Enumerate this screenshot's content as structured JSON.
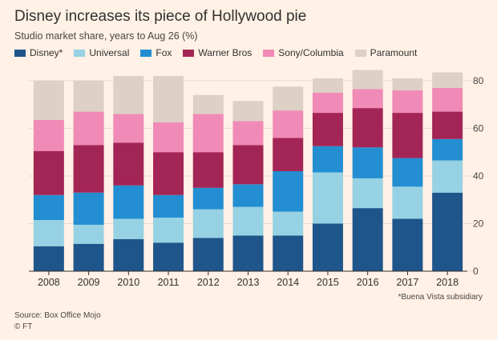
{
  "title": "Disney increases its piece of Hollywood pie",
  "subtitle": "Studio market share, years to Aug 26 (%)",
  "footnote": "*Buena Vista subsidiary",
  "source": "Source: Box Office Mojo",
  "credit": "© FT",
  "colors": {
    "Disney*": "#1e558b",
    "Universal": "#96d2e3",
    "Fox": "#238ed2",
    "Warner Bros": "#a32555",
    "Sony/Columbia": "#f08ab6",
    "Paramount": "#ddd0c6"
  },
  "chart_data": {
    "type": "bar",
    "stacked": true,
    "categories": [
      "2008",
      "2009",
      "2010",
      "2011",
      "2012",
      "2013",
      "2014",
      "2015",
      "2016",
      "2017",
      "2018"
    ],
    "series": [
      {
        "name": "Disney*",
        "values": [
          10.5,
          11.5,
          13.5,
          12.0,
          14.0,
          15.0,
          15.0,
          20.0,
          26.5,
          22.0,
          33.0
        ]
      },
      {
        "name": "Universal",
        "values": [
          11.0,
          8.0,
          8.5,
          10.5,
          12.0,
          12.0,
          10.0,
          21.5,
          12.5,
          13.5,
          13.5
        ]
      },
      {
        "name": "Fox",
        "values": [
          10.5,
          13.5,
          14.0,
          9.5,
          9.0,
          9.5,
          17.0,
          11.0,
          13.0,
          12.0,
          9.0
        ]
      },
      {
        "name": "Warner Bros",
        "values": [
          18.5,
          20.0,
          18.0,
          18.0,
          15.0,
          16.5,
          14.0,
          14.0,
          16.5,
          19.0,
          11.5
        ]
      },
      {
        "name": "Sony/Columbia",
        "values": [
          13.0,
          14.0,
          12.0,
          12.5,
          16.0,
          10.0,
          11.5,
          8.5,
          8.0,
          9.5,
          10.0
        ]
      },
      {
        "name": "Paramount",
        "values": [
          16.5,
          13.0,
          16.0,
          19.5,
          8.0,
          8.5,
          10.0,
          6.0,
          8.0,
          5.0,
          6.5
        ]
      }
    ],
    "ylim": [
      0,
      85
    ],
    "yticks": [
      0,
      20,
      40,
      60,
      80
    ],
    "grid": true,
    "legend_position": "top"
  }
}
